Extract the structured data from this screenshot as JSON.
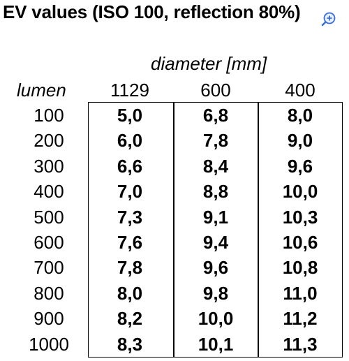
{
  "title": "EV values (ISO 100, reflection 80%)",
  "column_group_label": "diameter [mm]",
  "row_header_label": "lumen",
  "icons": {
    "zoom": "zoom-in-icon"
  },
  "columns": [
    "1129",
    "600",
    "400"
  ],
  "rows": [
    {
      "lumen": "100",
      "values": [
        "5,0",
        "6,8",
        "8,0"
      ]
    },
    {
      "lumen": "200",
      "values": [
        "6,0",
        "7,8",
        "9,0"
      ]
    },
    {
      "lumen": "300",
      "values": [
        "6,6",
        "8,4",
        "9,6"
      ]
    },
    {
      "lumen": "400",
      "values": [
        "7,0",
        "8,8",
        "10,0"
      ]
    },
    {
      "lumen": "500",
      "values": [
        "7,3",
        "9,1",
        "10,3"
      ]
    },
    {
      "lumen": "600",
      "values": [
        "7,6",
        "9,4",
        "10,6"
      ]
    },
    {
      "lumen": "700",
      "values": [
        "7,8",
        "9,6",
        "10,8"
      ]
    },
    {
      "lumen": "800",
      "values": [
        "8,0",
        "9,8",
        "11,0"
      ]
    },
    {
      "lumen": "900",
      "values": [
        "8,2",
        "10,0",
        "11,2"
      ]
    },
    {
      "lumen": "1000",
      "values": [
        "8,3",
        "10,1",
        "11,3"
      ]
    }
  ]
}
